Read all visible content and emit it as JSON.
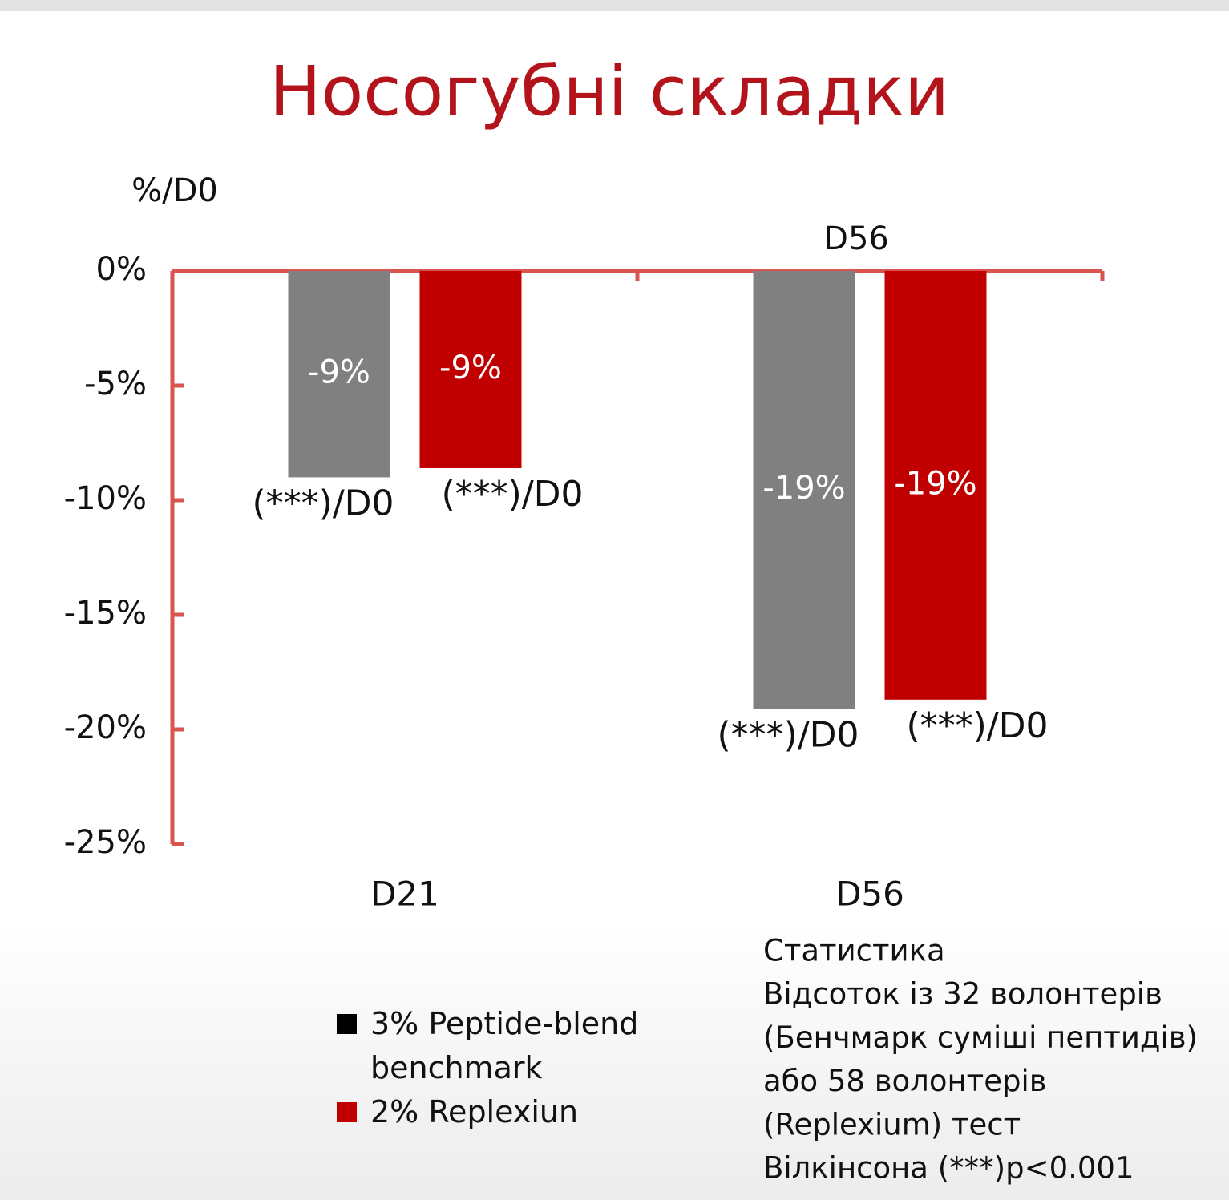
{
  "chart_data": {
    "type": "bar",
    "title": "Носогубні складки",
    "y_label": "%/D0",
    "top_label": "D56",
    "categories": [
      "D21",
      "D56"
    ],
    "series": [
      {
        "name": "3% Peptide-blend benchmark",
        "color": "#808080",
        "legend_color": "#000000",
        "values": [
          -9,
          -19.1
        ],
        "value_labels": [
          "-9%",
          "-19%"
        ],
        "annotations": [
          "(***)/D0",
          "(***)/D0"
        ]
      },
      {
        "name": "2% Replexiun",
        "color": "#c00000",
        "legend_color": "#c00000",
        "values": [
          -8.6,
          -18.7
        ],
        "value_labels": [
          "-9%",
          "-19%"
        ],
        "annotations": [
          "(***)/D0",
          "(***)/D0"
        ]
      }
    ],
    "ylim": [
      -25,
      0
    ],
    "yticks": [
      {
        "value": 0,
        "label": "0%"
      },
      {
        "value": -5,
        "label": "-5%"
      },
      {
        "value": -10,
        "label": "-10%"
      },
      {
        "value": -15,
        "label": "-15%"
      },
      {
        "value": -20,
        "label": "-20%"
      },
      {
        "value": -25,
        "label": "-25%"
      }
    ],
    "axis_color": "#d9534f",
    "note": [
      "Статистика",
      "Відсоток із 32 волонтерів",
      "(Бенчмарк суміші пептидів)",
      "або 58 волонтерів",
      "(Replexium) тест",
      "Вілкінсона (***)p<0.001"
    ]
  }
}
